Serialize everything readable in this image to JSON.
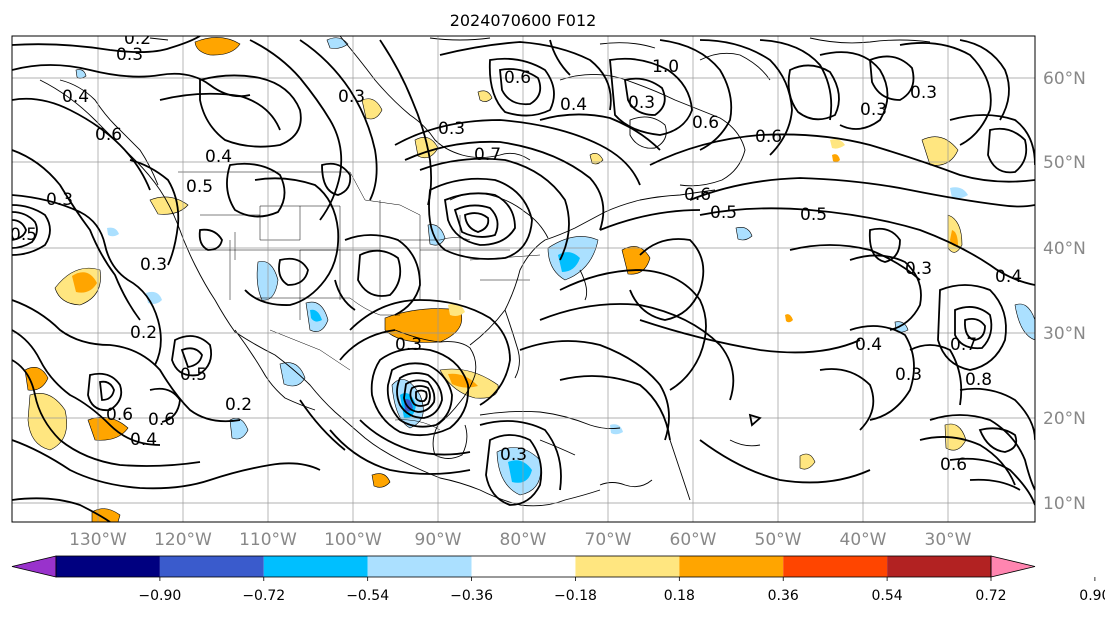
{
  "title": "2024070600 F012",
  "lon_labels": [
    "130°W",
    "120°W",
    "110°W",
    "100°W",
    "90°W",
    "80°W",
    "70°W",
    "60°W",
    "50°W",
    "40°W",
    "30°W"
  ],
  "lat_labels": [
    "60°N",
    "50°N",
    "40°N",
    "30°N",
    "20°N",
    "10°N"
  ],
  "colorbar": {
    "tick_labels": [
      "−0.90",
      "−0.72",
      "−0.54",
      "−0.36",
      "−0.18",
      "0.18",
      "0.36",
      "0.54",
      "0.72",
      "0.90"
    ],
    "colors": [
      "#9932cc",
      "#000080",
      "#3a5bcc",
      "#00bfff",
      "#abe0ff",
      "#ffffff",
      "#ffe680",
      "#ffa500",
      "#ff4500",
      "#b22222",
      "#ff85b0"
    ]
  },
  "contour_labels": [
    "0.3",
    "0.2",
    "0.3",
    "0.6",
    "0.3",
    "0.4",
    "0.5",
    "0.3",
    "0.6",
    "0.3",
    "0.6",
    "0.3",
    "1.0",
    "0.5",
    "0.7",
    "0.6",
    "0.6",
    "0.5",
    "0.4",
    "0.3",
    "0.4",
    "0.3",
    "0.5",
    "0.2",
    "0.6",
    "0.4",
    "0.3",
    "0.2",
    "0.6",
    "0.3",
    "0.4",
    "0.4",
    "0.5",
    "0.3",
    "0.7",
    "0.8",
    "0.6",
    "0.3"
  ],
  "colors": {
    "land_line": "#000000",
    "grid": "#999999",
    "tick_text": "#888888"
  }
}
